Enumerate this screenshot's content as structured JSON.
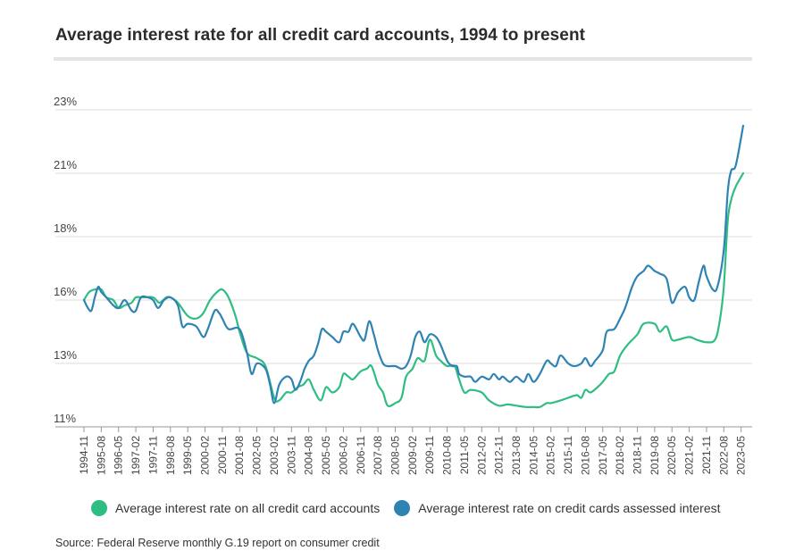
{
  "title": "Average interest rate for all credit card accounts, 1994 to present",
  "source": "Source: Federal Reserve monthly G.19 report on consumer credit",
  "colors": {
    "all_accounts": "#2ebd82",
    "assessed_interest": "#2f83b3",
    "grid": "#dcdcdc",
    "axis": "#9a9a9a"
  },
  "chart_data": {
    "type": "line",
    "title": "Average interest rate for all credit card accounts, 1994 to present",
    "xlabel": "",
    "ylabel": "",
    "ylim": [
      11,
      23
    ],
    "y_ticks": [
      {
        "value": 11,
        "label": "11%"
      },
      {
        "value": 13.4,
        "label": "13%"
      },
      {
        "value": 15.8,
        "label": "16%"
      },
      {
        "value": 18.2,
        "label": "18%"
      },
      {
        "value": 20.6,
        "label": "21%"
      },
      {
        "value": 23,
        "label": "23%"
      }
    ],
    "x_range": [
      1994.83,
      2023.42
    ],
    "x_ticks": [
      {
        "value": 1994.83,
        "label": "1994-11"
      },
      {
        "value": 1995.58,
        "label": "1995-08"
      },
      {
        "value": 1996.33,
        "label": "1996-05"
      },
      {
        "value": 1997.08,
        "label": "1997-02"
      },
      {
        "value": 1997.83,
        "label": "1997-11"
      },
      {
        "value": 1998.58,
        "label": "1998-08"
      },
      {
        "value": 1999.33,
        "label": "1999-05"
      },
      {
        "value": 2000.08,
        "label": "2000-02"
      },
      {
        "value": 2000.83,
        "label": "2000-11"
      },
      {
        "value": 2001.58,
        "label": "2001-08"
      },
      {
        "value": 2002.33,
        "label": "2002-05"
      },
      {
        "value": 2003.08,
        "label": "2003-02"
      },
      {
        "value": 2003.83,
        "label": "2003-11"
      },
      {
        "value": 2004.58,
        "label": "2004-08"
      },
      {
        "value": 2005.33,
        "label": "2005-05"
      },
      {
        "value": 2006.08,
        "label": "2006-02"
      },
      {
        "value": 2006.83,
        "label": "2006-11"
      },
      {
        "value": 2007.58,
        "label": "2007-08"
      },
      {
        "value": 2008.33,
        "label": "2008-05"
      },
      {
        "value": 2009.08,
        "label": "2009-02"
      },
      {
        "value": 2009.83,
        "label": "2009-11"
      },
      {
        "value": 2010.58,
        "label": "2010-08"
      },
      {
        "value": 2011.33,
        "label": "2011-05"
      },
      {
        "value": 2012.08,
        "label": "2012-02"
      },
      {
        "value": 2012.83,
        "label": "2012-11"
      },
      {
        "value": 2013.58,
        "label": "2013-08"
      },
      {
        "value": 2014.33,
        "label": "2014-05"
      },
      {
        "value": 2015.08,
        "label": "2015-02"
      },
      {
        "value": 2015.83,
        "label": "2015-11"
      },
      {
        "value": 2016.58,
        "label": "2016-08"
      },
      {
        "value": 2017.33,
        "label": "2017-05"
      },
      {
        "value": 2018.08,
        "label": "2018-02"
      },
      {
        "value": 2018.83,
        "label": "2018-11"
      },
      {
        "value": 2019.58,
        "label": "2019-08"
      },
      {
        "value": 2020.33,
        "label": "2020-05"
      },
      {
        "value": 2021.08,
        "label": "2021-02"
      },
      {
        "value": 2021.83,
        "label": "2021-11"
      },
      {
        "value": 2022.58,
        "label": "2022-08"
      },
      {
        "value": 2023.33,
        "label": "2023-05"
      }
    ],
    "series": [
      {
        "name": "Average interest rate on all credit card accounts",
        "color": "#2ebd82",
        "points": [
          [
            1994.83,
            15.8
          ],
          [
            1995.05,
            16.1
          ],
          [
            1995.3,
            16.2
          ],
          [
            1995.58,
            16.2
          ],
          [
            1995.8,
            15.9
          ],
          [
            1996.1,
            15.8
          ],
          [
            1996.33,
            15.5
          ],
          [
            1996.6,
            15.6
          ],
          [
            1996.9,
            15.7
          ],
          [
            1997.08,
            15.9
          ],
          [
            1997.4,
            15.9
          ],
          [
            1997.83,
            15.9
          ],
          [
            1998.1,
            15.7
          ],
          [
            1998.4,
            15.9
          ],
          [
            1998.58,
            15.9
          ],
          [
            1998.9,
            15.7
          ],
          [
            1999.33,
            15.2
          ],
          [
            1999.7,
            15.1
          ],
          [
            2000.0,
            15.3
          ],
          [
            2000.3,
            15.8
          ],
          [
            2000.6,
            16.1
          ],
          [
            2000.83,
            16.2
          ],
          [
            2001.1,
            15.9
          ],
          [
            2001.4,
            15.2
          ],
          [
            2001.58,
            14.6
          ],
          [
            2001.9,
            13.8
          ],
          [
            2002.33,
            13.6
          ],
          [
            2002.7,
            13.3
          ],
          [
            2003.08,
            12.1
          ],
          [
            2003.3,
            12.0
          ],
          [
            2003.6,
            12.3
          ],
          [
            2003.83,
            12.3
          ],
          [
            2004.1,
            12.5
          ],
          [
            2004.35,
            12.6
          ],
          [
            2004.58,
            12.8
          ],
          [
            2004.8,
            12.4
          ],
          [
            2005.1,
            12.0
          ],
          [
            2005.33,
            12.5
          ],
          [
            2005.6,
            12.3
          ],
          [
            2005.9,
            12.5
          ],
          [
            2006.08,
            13.0
          ],
          [
            2006.3,
            12.9
          ],
          [
            2006.5,
            12.8
          ],
          [
            2006.83,
            13.1
          ],
          [
            2007.1,
            13.2
          ],
          [
            2007.3,
            13.3
          ],
          [
            2007.58,
            12.6
          ],
          [
            2007.8,
            12.3
          ],
          [
            2008.0,
            11.8
          ],
          [
            2008.33,
            11.9
          ],
          [
            2008.6,
            12.1
          ],
          [
            2008.8,
            12.9
          ],
          [
            2009.08,
            13.2
          ],
          [
            2009.3,
            13.6
          ],
          [
            2009.6,
            13.5
          ],
          [
            2009.83,
            14.3
          ],
          [
            2010.1,
            13.7
          ],
          [
            2010.3,
            13.5
          ],
          [
            2010.58,
            13.3
          ],
          [
            2010.9,
            13.3
          ],
          [
            2011.1,
            12.8
          ],
          [
            2011.33,
            12.3
          ],
          [
            2011.6,
            12.4
          ],
          [
            2012.08,
            12.3
          ],
          [
            2012.4,
            12.0
          ],
          [
            2012.83,
            11.8
          ],
          [
            2013.2,
            11.85
          ],
          [
            2013.58,
            11.8
          ],
          [
            2014.0,
            11.75
          ],
          [
            2014.33,
            11.75
          ],
          [
            2014.6,
            11.75
          ],
          [
            2014.9,
            11.9
          ],
          [
            2015.08,
            11.9
          ],
          [
            2015.5,
            12.0
          ],
          [
            2015.83,
            12.1
          ],
          [
            2016.2,
            12.2
          ],
          [
            2016.4,
            12.1
          ],
          [
            2016.58,
            12.4
          ],
          [
            2016.8,
            12.3
          ],
          [
            2017.1,
            12.5
          ],
          [
            2017.33,
            12.7
          ],
          [
            2017.6,
            13.0
          ],
          [
            2017.83,
            13.1
          ],
          [
            2018.08,
            13.7
          ],
          [
            2018.4,
            14.1
          ],
          [
            2018.83,
            14.5
          ],
          [
            2019.1,
            14.9
          ],
          [
            2019.58,
            14.9
          ],
          [
            2019.8,
            14.6
          ],
          [
            2020.1,
            14.8
          ],
          [
            2020.33,
            14.3
          ],
          [
            2020.6,
            14.3
          ],
          [
            2021.08,
            14.4
          ],
          [
            2021.4,
            14.3
          ],
          [
            2021.83,
            14.2
          ],
          [
            2022.2,
            14.3
          ],
          [
            2022.4,
            15.0
          ],
          [
            2022.58,
            16.3
          ],
          [
            2022.75,
            18.8
          ],
          [
            2022.9,
            19.6
          ],
          [
            2023.1,
            20.1
          ],
          [
            2023.42,
            20.6
          ]
        ]
      },
      {
        "name": "Average interest rate on credit cards assessed interest",
        "color": "#2f83b3",
        "points": [
          [
            1994.83,
            15.8
          ],
          [
            1995.0,
            15.5
          ],
          [
            1995.15,
            15.4
          ],
          [
            1995.3,
            15.9
          ],
          [
            1995.45,
            16.3
          ],
          [
            1995.58,
            16.1
          ],
          [
            1995.8,
            15.9
          ],
          [
            1996.1,
            15.6
          ],
          [
            1996.33,
            15.5
          ],
          [
            1996.6,
            15.8
          ],
          [
            1996.9,
            15.4
          ],
          [
            1997.08,
            15.4
          ],
          [
            1997.3,
            15.9
          ],
          [
            1997.6,
            15.9
          ],
          [
            1997.83,
            15.8
          ],
          [
            1998.05,
            15.5
          ],
          [
            1998.3,
            15.8
          ],
          [
            1998.58,
            15.9
          ],
          [
            1998.9,
            15.6
          ],
          [
            1999.1,
            14.8
          ],
          [
            1999.33,
            14.9
          ],
          [
            1999.7,
            14.8
          ],
          [
            2000.0,
            14.4
          ],
          [
            2000.2,
            14.7
          ],
          [
            2000.5,
            15.4
          ],
          [
            2000.7,
            15.3
          ],
          [
            2000.83,
            15.1
          ],
          [
            2001.1,
            14.7
          ],
          [
            2001.58,
            14.7
          ],
          [
            2001.9,
            13.8
          ],
          [
            2002.1,
            13.0
          ],
          [
            2002.33,
            13.4
          ],
          [
            2002.7,
            13.2
          ],
          [
            2002.9,
            12.6
          ],
          [
            2003.08,
            11.9
          ],
          [
            2003.3,
            12.6
          ],
          [
            2003.6,
            12.9
          ],
          [
            2003.83,
            12.8
          ],
          [
            2004.0,
            12.4
          ],
          [
            2004.2,
            12.7
          ],
          [
            2004.4,
            13.2
          ],
          [
            2004.58,
            13.5
          ],
          [
            2004.8,
            13.7
          ],
          [
            2005.0,
            14.2
          ],
          [
            2005.15,
            14.7
          ],
          [
            2005.33,
            14.6
          ],
          [
            2005.6,
            14.4
          ],
          [
            2005.9,
            14.2
          ],
          [
            2006.08,
            14.6
          ],
          [
            2006.3,
            14.6
          ],
          [
            2006.5,
            14.9
          ],
          [
            2006.83,
            14.4
          ],
          [
            2007.0,
            14.3
          ],
          [
            2007.2,
            15.0
          ],
          [
            2007.4,
            14.5
          ],
          [
            2007.58,
            13.9
          ],
          [
            2007.8,
            13.4
          ],
          [
            2008.0,
            13.3
          ],
          [
            2008.33,
            13.3
          ],
          [
            2008.6,
            13.2
          ],
          [
            2008.8,
            13.3
          ],
          [
            2009.0,
            13.7
          ],
          [
            2009.2,
            14.4
          ],
          [
            2009.4,
            14.6
          ],
          [
            2009.6,
            14.2
          ],
          [
            2009.83,
            14.5
          ],
          [
            2010.1,
            14.4
          ],
          [
            2010.3,
            14.1
          ],
          [
            2010.58,
            13.5
          ],
          [
            2010.8,
            13.3
          ],
          [
            2011.0,
            13.3
          ],
          [
            2011.1,
            13.0
          ],
          [
            2011.33,
            12.9
          ],
          [
            2011.6,
            12.9
          ],
          [
            2011.8,
            12.7
          ],
          [
            2012.08,
            12.9
          ],
          [
            2012.4,
            12.8
          ],
          [
            2012.6,
            13.0
          ],
          [
            2012.83,
            12.8
          ],
          [
            2013.0,
            12.9
          ],
          [
            2013.3,
            12.7
          ],
          [
            2013.58,
            12.9
          ],
          [
            2013.9,
            12.7
          ],
          [
            2014.1,
            13.0
          ],
          [
            2014.33,
            12.7
          ],
          [
            2014.6,
            13.0
          ],
          [
            2014.9,
            13.5
          ],
          [
            2015.08,
            13.4
          ],
          [
            2015.3,
            13.3
          ],
          [
            2015.5,
            13.7
          ],
          [
            2015.83,
            13.4
          ],
          [
            2016.1,
            13.3
          ],
          [
            2016.4,
            13.4
          ],
          [
            2016.58,
            13.6
          ],
          [
            2016.8,
            13.3
          ],
          [
            2017.0,
            13.5
          ],
          [
            2017.33,
            13.9
          ],
          [
            2017.5,
            14.6
          ],
          [
            2017.83,
            14.7
          ],
          [
            2018.08,
            15.1
          ],
          [
            2018.3,
            15.5
          ],
          [
            2018.6,
            16.3
          ],
          [
            2018.83,
            16.7
          ],
          [
            2019.1,
            16.9
          ],
          [
            2019.3,
            17.1
          ],
          [
            2019.58,
            16.9
          ],
          [
            2019.8,
            16.8
          ],
          [
            2020.1,
            16.6
          ],
          [
            2020.33,
            15.7
          ],
          [
            2020.6,
            16.1
          ],
          [
            2020.9,
            16.3
          ],
          [
            2021.08,
            15.9
          ],
          [
            2021.3,
            15.8
          ],
          [
            2021.5,
            16.5
          ],
          [
            2021.7,
            17.1
          ],
          [
            2021.83,
            16.7
          ],
          [
            2022.1,
            16.2
          ],
          [
            2022.3,
            16.3
          ],
          [
            2022.58,
            17.7
          ],
          [
            2022.75,
            19.9
          ],
          [
            2022.9,
            20.7
          ],
          [
            2023.1,
            20.9
          ],
          [
            2023.42,
            22.4
          ]
        ]
      }
    ]
  },
  "legend": [
    {
      "label": "Average interest rate on all credit card accounts",
      "color": "#2ebd82"
    },
    {
      "label": "Average interest rate on credit cards assessed interest",
      "color": "#2f83b3"
    }
  ]
}
